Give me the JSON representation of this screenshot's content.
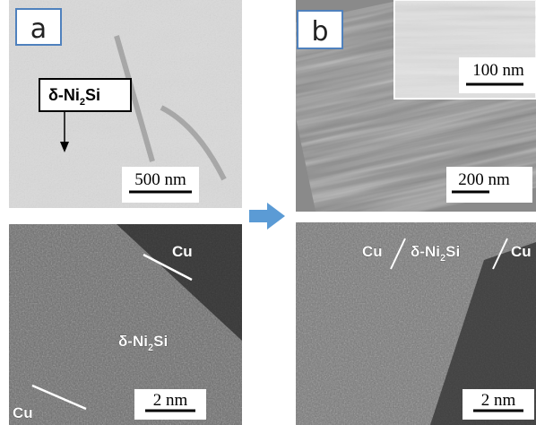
{
  "panels": [
    {
      "label": "a",
      "top": {
        "annotation": {
          "text": "δ-Ni",
          "sub": "2",
          "tail": "Si"
        },
        "scale_bar": "500 nm"
      },
      "bottom": {
        "labels": [
          "Cu",
          "Cu"
        ],
        "phase": {
          "text": "δ-Ni",
          "sub": "2",
          "tail": "Si"
        },
        "scale_bar": "2 nm"
      }
    },
    {
      "label": "b",
      "top": {
        "inset_scale_bar": "100 nm",
        "scale_bar": "200 nm"
      },
      "bottom": {
        "interface": {
          "left": "Cu",
          "middle": {
            "text": "δ-Ni",
            "sub": "2",
            "tail": "Si"
          },
          "right": "Cu"
        },
        "scale_bar": "2 nm"
      }
    }
  ]
}
